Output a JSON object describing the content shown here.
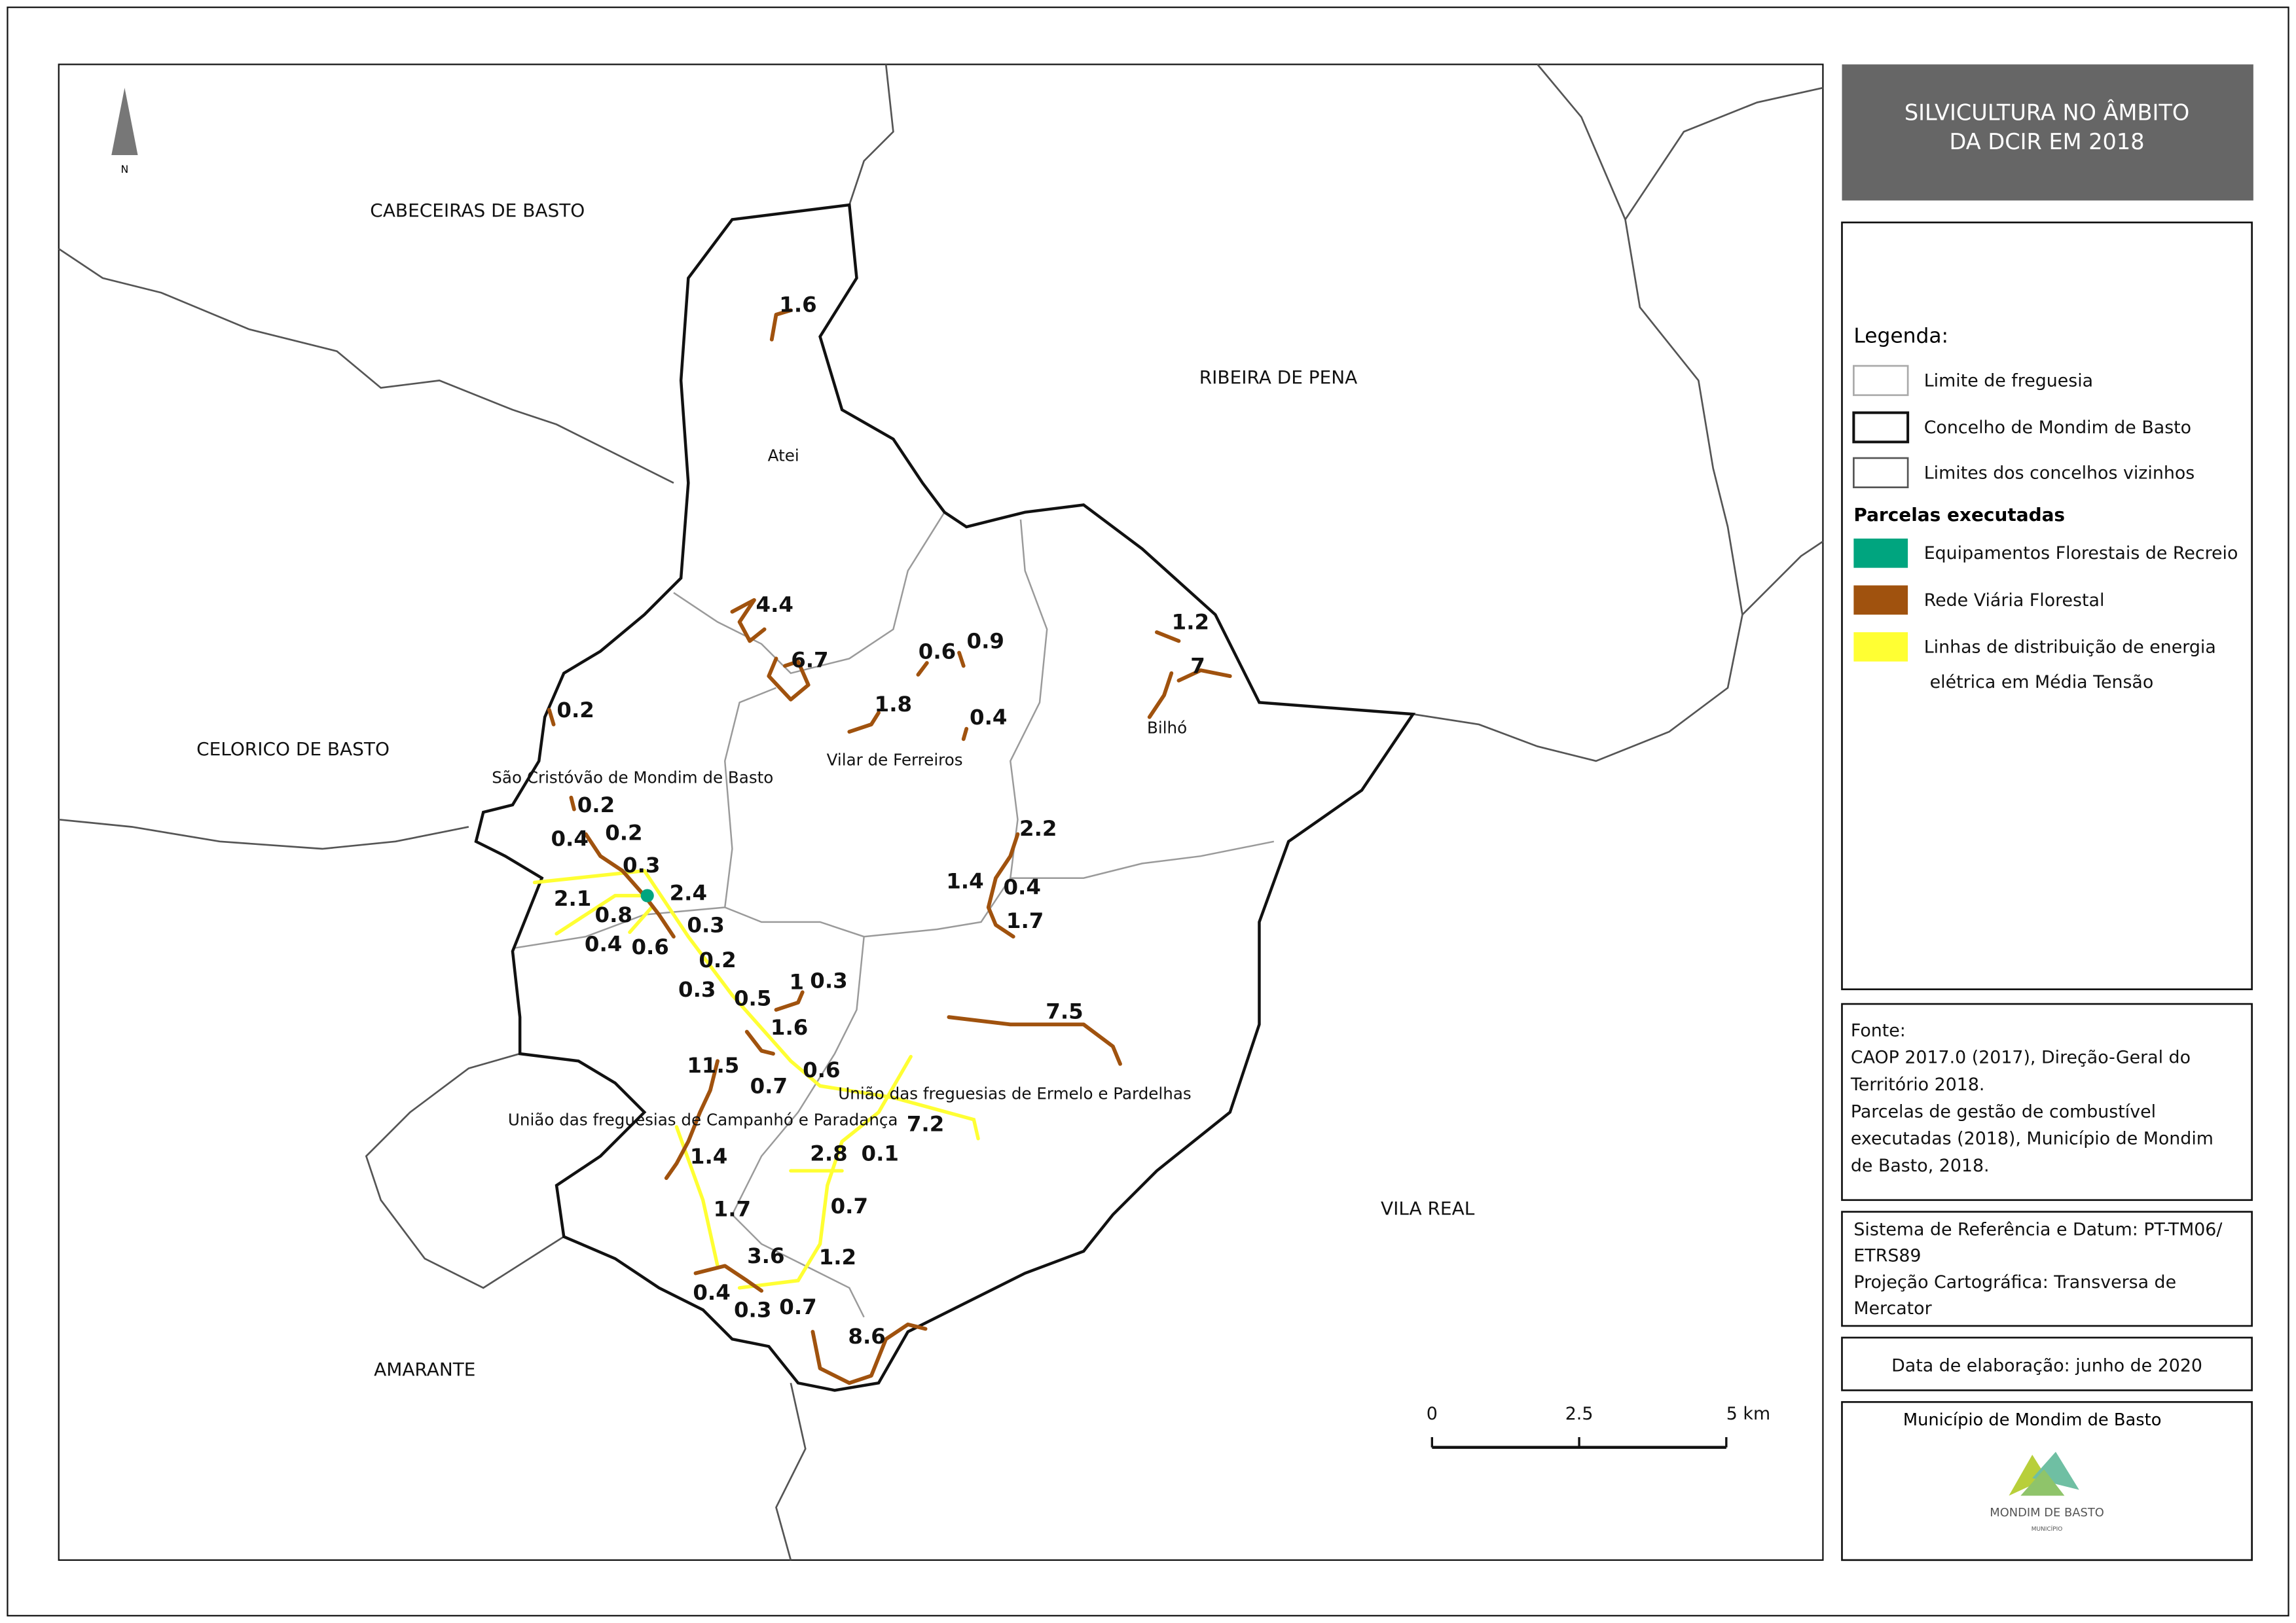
{
  "title_lines": [
    "SILVICULTURA NO ÂMBITO",
    "DA DCIR EM 2018"
  ],
  "north_label": "N",
  "neighbors": [
    "CABECEIRAS DE BASTO",
    "RIBEIRA DE PENA",
    "CELORICO DE BASTO",
    "VILA REAL",
    "AMARANTE"
  ],
  "parishes": [
    "Atei",
    "Vilar de Ferreiros",
    "Bilhó",
    "São Cristóvão de Mondim de Basto",
    "União das freguesias de Ermelo e Pardelhas",
    "União das freguesias de Campanhó e Paradança"
  ],
  "segment_values": [
    1.6,
    4.4,
    6.7,
    0.6,
    0.9,
    1.8,
    0.4,
    1.2,
    7,
    0.2,
    0.2,
    0.2,
    0.4,
    0.3,
    2.1,
    2.4,
    0.8,
    0.3,
    0.4,
    0.6,
    0.2,
    2.2,
    1.4,
    0.4,
    1.7,
    1,
    0.3,
    0.3,
    0.5,
    1.6,
    7.5,
    11.5,
    0.6,
    0.7,
    7.2,
    1.4,
    2.8,
    0.1,
    1.7,
    0.7,
    3.6,
    1.2,
    0.4,
    0.3,
    0.7,
    8.6
  ],
  "legend": {
    "title": "Legenda:",
    "items": [
      {
        "label": [
          "Limite de freguesia"
        ]
      },
      {
        "label": [
          "Concelho de Mondim de Basto"
        ]
      },
      {
        "label": [
          "Limites dos concelhos vizinhos"
        ]
      }
    ],
    "section": "Parcelas executadas",
    "parcel_items": [
      {
        "label": [
          "Equipamentos Florestais de Recreio"
        ],
        "color": "#00a57f"
      },
      {
        "label": [
          "Rede Viária Florestal"
        ],
        "color": "#a0520e"
      },
      {
        "label": [
          "Linhas de distribuição de energia",
          "elétrica em Média Tensão"
        ],
        "color": "#ffff33"
      }
    ]
  },
  "source_lines": [
    "Fonte:",
    "CAOP 2017.0 (2017), Direção-Geral do",
    "Território 2018.",
    "Parcelas de gestão de combustível",
    "executadas (2018), Município de Mondim",
    "de Basto, 2018."
  ],
  "reference_lines": [
    "Sistema de Referência e Datum: PT-TM06/",
    "ETRS89",
    "Projeção Cartográfica: Transversa de",
    "Mercator"
  ],
  "date": "Data de elaboração: junho de 2020",
  "scale_bar": {
    "ticks": [
      0,
      2.5,
      {
        "value": 5,
        "label": "5 km"
      }
    ]
  },
  "logo": {
    "caption": "Município de Mondim de Basto",
    "name": "MONDIM DE BASTO",
    "sub": "MUNICÍPIO"
  }
}
